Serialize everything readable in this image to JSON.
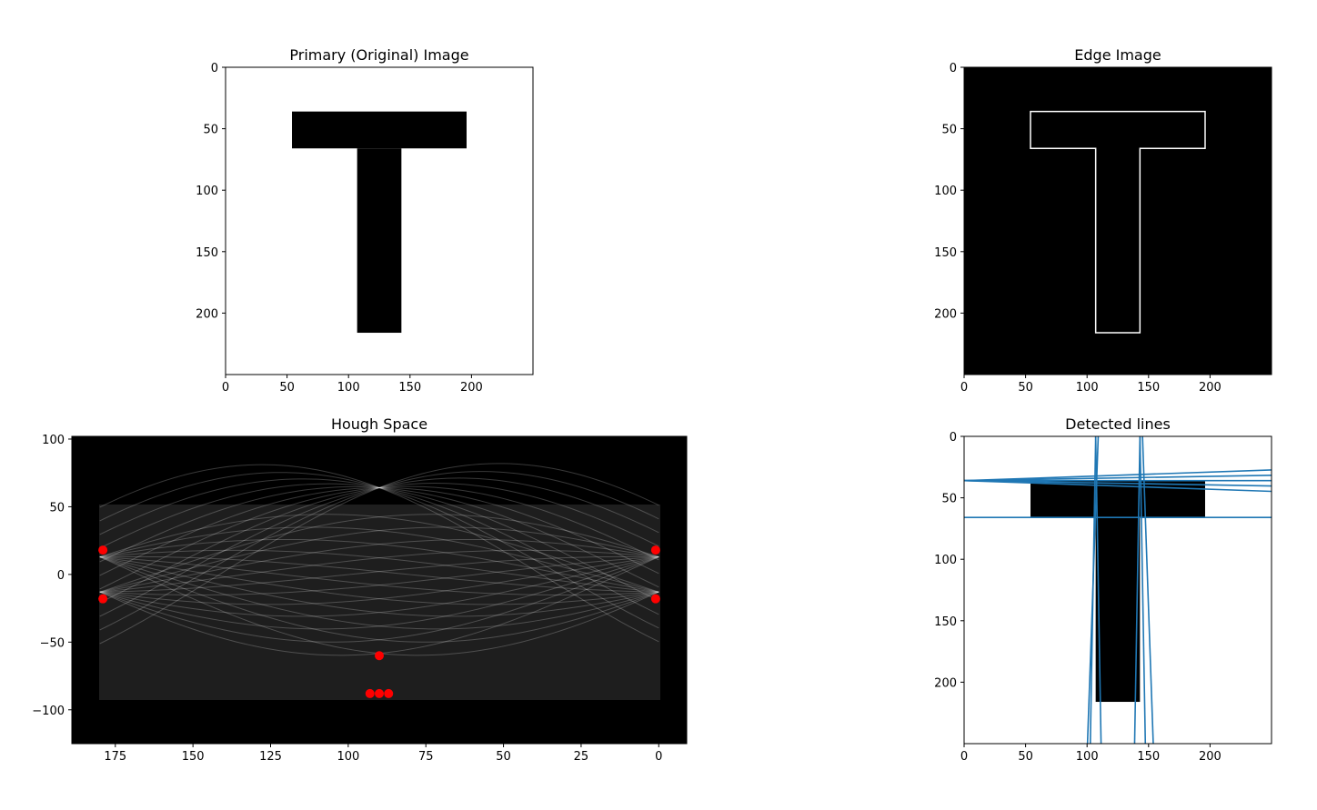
{
  "colors": {
    "line": "#1f77b4",
    "peak": "#ff0000",
    "background": "#000000",
    "foreground": "#ffffff"
  },
  "chart_data": [
    {
      "type": "image",
      "title": "Primary (Original) Image",
      "xlim": [
        0,
        250
      ],
      "ylim": [
        250,
        0
      ],
      "xticks": [
        "0",
        "50",
        "100",
        "150",
        "200"
      ],
      "yticks": [
        "0",
        "50",
        "100",
        "150",
        "200"
      ],
      "shape": {
        "bar": [
          54,
          36,
          196,
          66
        ],
        "stem": [
          107,
          66,
          143,
          216
        ]
      }
    },
    {
      "type": "image",
      "title": "Edge Image",
      "xlim": [
        0,
        250
      ],
      "ylim": [
        250,
        0
      ],
      "xticks": [
        "0",
        "50",
        "100",
        "150",
        "200"
      ],
      "yticks": [
        "0",
        "50",
        "100",
        "150",
        "200"
      ]
    },
    {
      "type": "heatmap",
      "title": "Hough Space",
      "xlim": [
        189,
        -9
      ],
      "ylim": [
        -125,
        102
      ],
      "xticks": [
        "175",
        "150",
        "125",
        "100",
        "75",
        "50",
        "25",
        "0"
      ],
      "yticks": [
        "−100",
        "−50",
        "0",
        "50",
        "100"
      ],
      "peaks_theta_rho": [
        [
          179,
          -18
        ],
        [
          179,
          18
        ],
        [
          1,
          -18
        ],
        [
          1,
          18
        ],
        [
          93,
          -88
        ],
        [
          90,
          -88
        ],
        [
          87,
          -88
        ],
        [
          90,
          -60
        ]
      ]
    },
    {
      "type": "image",
      "title": "Detected lines",
      "xlim": [
        0,
        250
      ],
      "ylim": [
        250,
        0
      ],
      "xticks": [
        "0",
        "50",
        "100",
        "150",
        "200"
      ],
      "yticks": [
        "0",
        "50",
        "100",
        "150",
        "200"
      ],
      "lines_theta_rho": [
        [
          90,
          36
        ],
        [
          89,
          36
        ],
        [
          91,
          36
        ],
        [
          88,
          36
        ],
        [
          92,
          36
        ],
        [
          90,
          66
        ],
        [
          1,
          107
        ],
        [
          -1,
          107
        ],
        [
          2,
          109
        ],
        [
          1,
          143
        ],
        [
          -1,
          143
        ],
        [
          -2,
          145
        ]
      ]
    }
  ]
}
